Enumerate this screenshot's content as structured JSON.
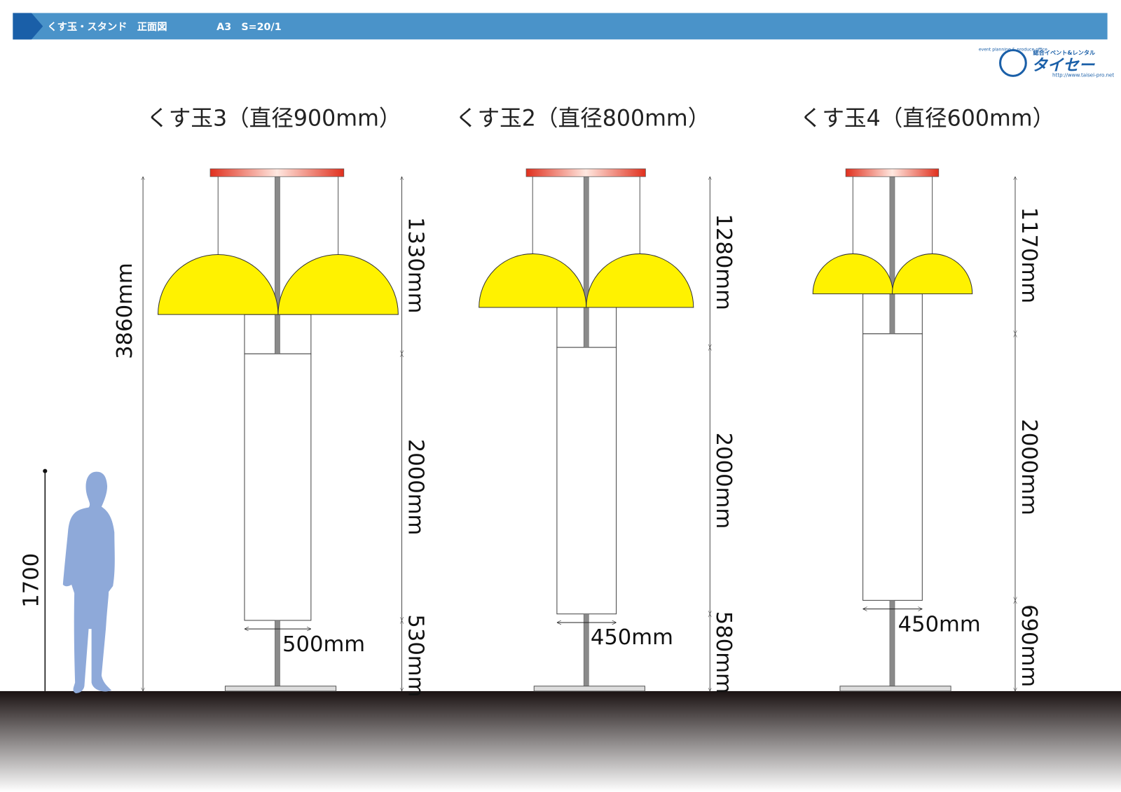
{
  "header": {
    "title": "くす玉・スタンド　正面図",
    "sheet": "A3　S=20/1"
  },
  "logo": {
    "tagline": "総合イベント&レンタル",
    "name": "タイセー",
    "url": "http://www.taisei-pro.net",
    "circle_text": "event planning & produce office"
  },
  "human": {
    "height_label": "1700"
  },
  "stands": [
    {
      "title": "くす玉3（直径900mm）",
      "total": "3860mm",
      "top": "1330mm",
      "middle": "2000mm",
      "bottom": "530mm",
      "width": "500mm"
    },
    {
      "title": "くす玉2（直径800mm）",
      "top": "1280mm",
      "middle": "2000mm",
      "bottom": "580mm",
      "width": "450mm"
    },
    {
      "title": "くす玉4（直径600mm）",
      "top": "1170mm",
      "middle": "2000mm",
      "bottom": "690mm",
      "width": "450mm"
    }
  ]
}
